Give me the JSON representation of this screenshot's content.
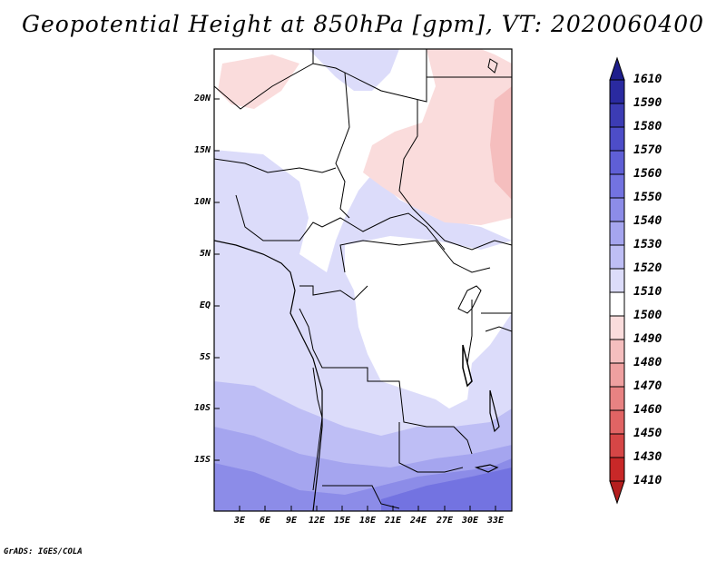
{
  "title": "Geopotential Height at 850hPa [gpm], VT: 2020060400",
  "credit": "GrADS: IGES/COLA",
  "map": {
    "lat_labels": [
      "20N",
      "15N",
      "10N",
      "5N",
      "EQ",
      "5S",
      "10S",
      "15S"
    ],
    "lon_labels": [
      "3E",
      "6E",
      "9E",
      "12E",
      "15E",
      "18E",
      "21E",
      "24E",
      "27E",
      "30E",
      "33E"
    ]
  },
  "colorbar": {
    "levels": [
      "1610",
      "1590",
      "1580",
      "1570",
      "1560",
      "1550",
      "1540",
      "1530",
      "1520",
      "1510",
      "1500",
      "1490",
      "1480",
      "1470",
      "1460",
      "1450",
      "1430",
      "1410"
    ],
    "colors": [
      "#1e1e8c",
      "#2a2aa0",
      "#3c3cb4",
      "#4d4dc8",
      "#5f5fd6",
      "#7373e1",
      "#8c8ce8",
      "#a5a5ef",
      "#bebef5",
      "#dcdcfa",
      "#ffffff",
      "#fadcdc",
      "#f5bebe",
      "#efa0a0",
      "#e88282",
      "#e16464",
      "#d64646",
      "#c82828",
      "#b41e1e"
    ]
  }
}
